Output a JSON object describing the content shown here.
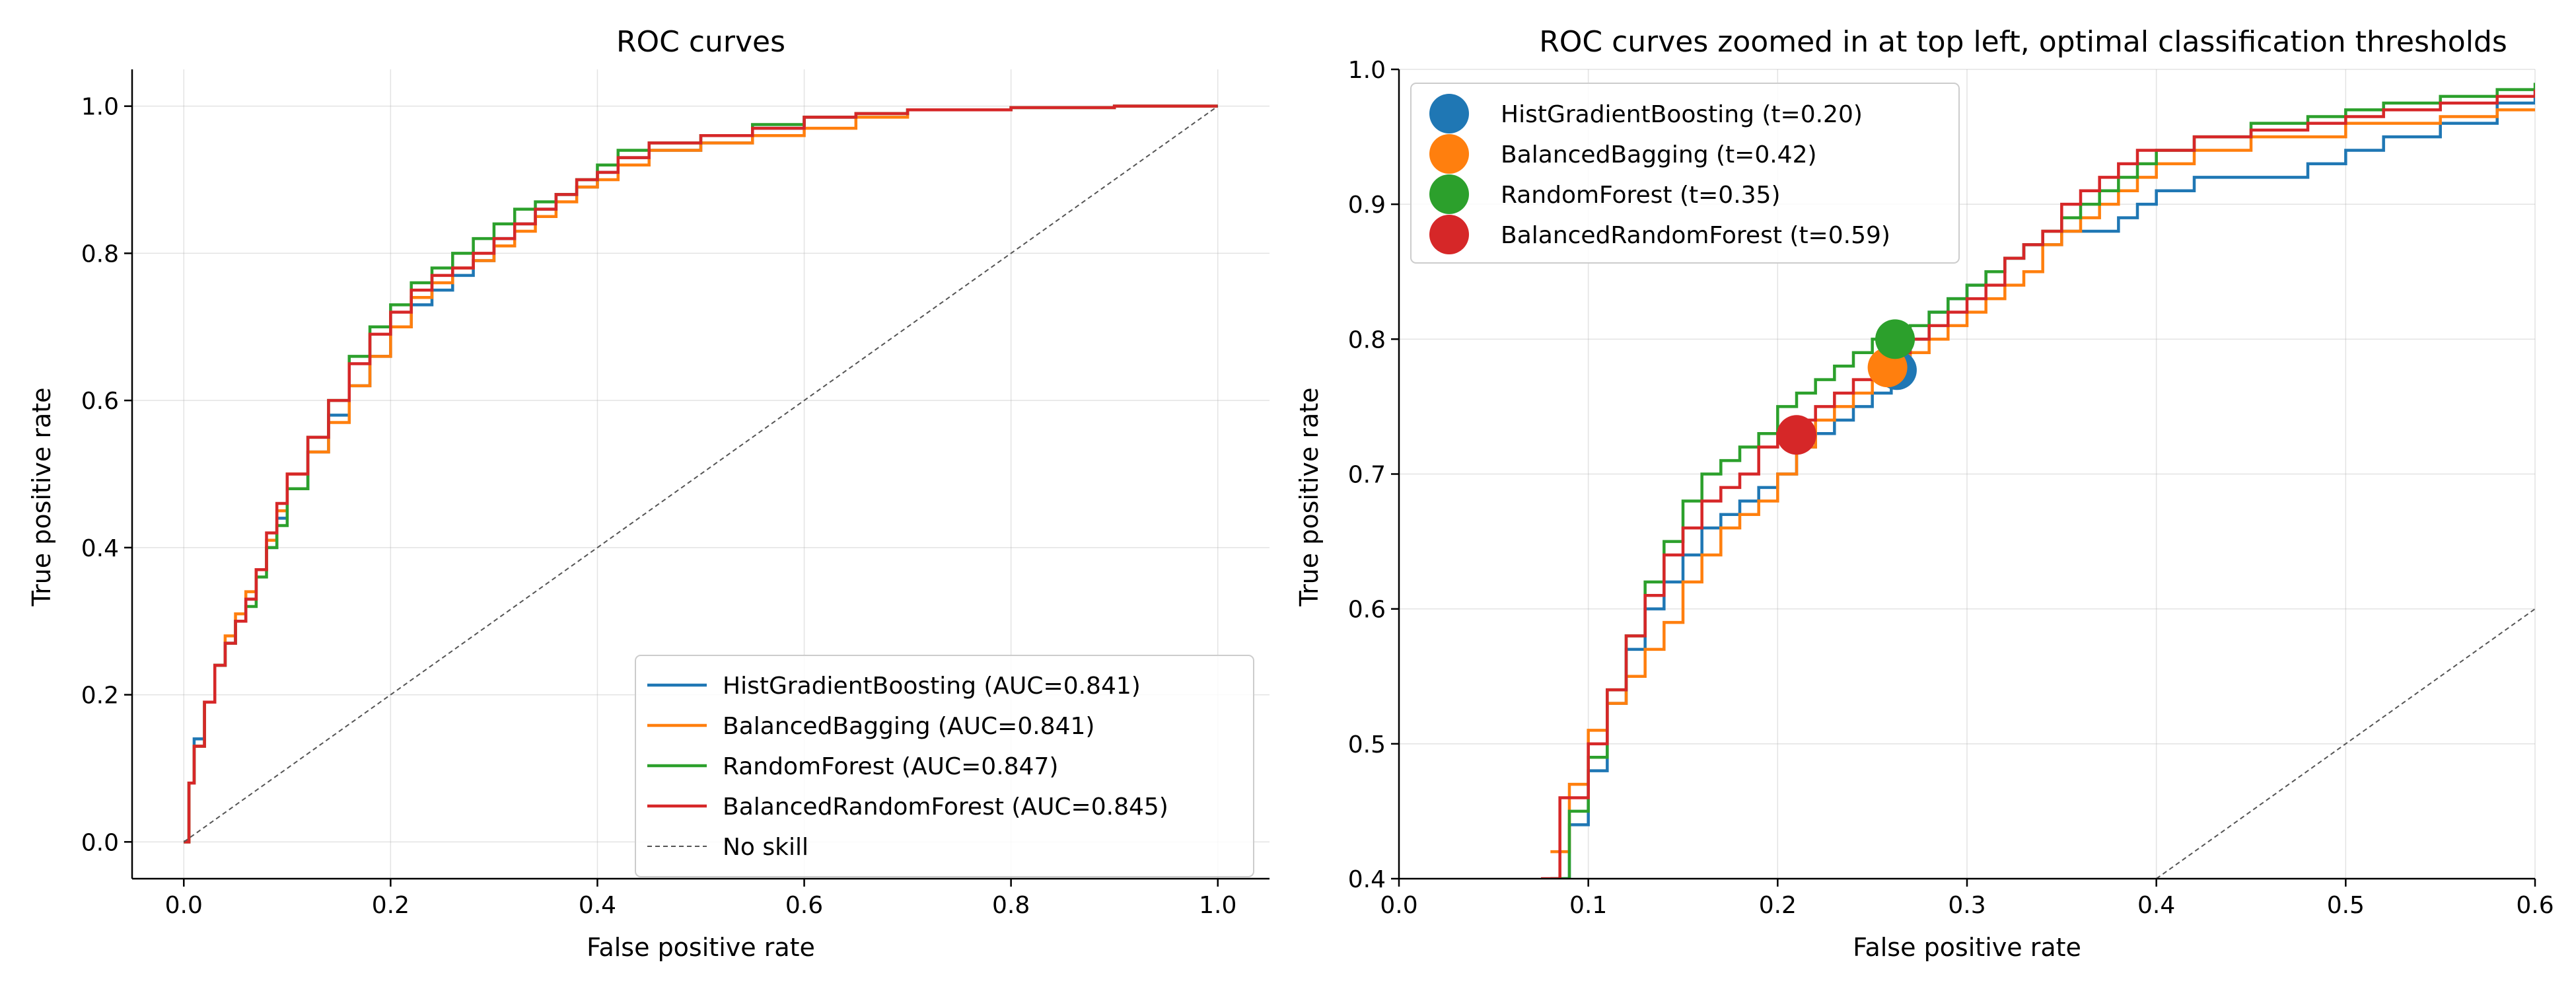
{
  "chart_data": [
    {
      "type": "line",
      "title": "ROC curves",
      "xlabel": "False positive rate",
      "ylabel": "True positive rate",
      "xlim": [
        -0.05,
        1.05
      ],
      "ylim": [
        -0.05,
        1.05
      ],
      "xticks": [
        0.0,
        0.2,
        0.4,
        0.6,
        0.8,
        1.0
      ],
      "yticks": [
        0.0,
        0.2,
        0.4,
        0.6,
        0.8,
        1.0
      ],
      "tick_labels_x": [
        "0.0",
        "0.2",
        "0.4",
        "0.6",
        "0.8",
        "1.0"
      ],
      "tick_labels_y": [
        "0.0",
        "0.2",
        "0.4",
        "0.6",
        "0.8",
        "1.0"
      ],
      "grid": true,
      "legend_position": "lower-right",
      "series": [
        {
          "name": "HistGradientBoosting (AUC=0.841)",
          "color": "#1f77b4",
          "x": [
            0,
            0.005,
            0.01,
            0.02,
            0.03,
            0.04,
            0.05,
            0.06,
            0.07,
            0.08,
            0.09,
            0.1,
            0.12,
            0.14,
            0.16,
            0.18,
            0.2,
            0.22,
            0.24,
            0.26,
            0.28,
            0.3,
            0.32,
            0.34,
            0.36,
            0.38,
            0.4,
            0.42,
            0.45,
            0.5,
            0.55,
            0.6,
            0.65,
            0.7,
            0.8,
            0.9,
            1.0
          ],
          "y": [
            0,
            0.08,
            0.14,
            0.19,
            0.24,
            0.27,
            0.3,
            0.33,
            0.37,
            0.4,
            0.44,
            0.48,
            0.53,
            0.58,
            0.62,
            0.66,
            0.7,
            0.73,
            0.75,
            0.77,
            0.79,
            0.82,
            0.84,
            0.86,
            0.88,
            0.89,
            0.91,
            0.93,
            0.94,
            0.95,
            0.97,
            0.985,
            0.99,
            0.995,
            0.998,
            1.0,
            1.0
          ]
        },
        {
          "name": "BalancedBagging (AUC=0.841)",
          "color": "#ff7f0e",
          "x": [
            0,
            0.005,
            0.01,
            0.02,
            0.03,
            0.04,
            0.05,
            0.06,
            0.07,
            0.08,
            0.09,
            0.1,
            0.12,
            0.14,
            0.16,
            0.18,
            0.2,
            0.22,
            0.24,
            0.26,
            0.28,
            0.3,
            0.32,
            0.34,
            0.36,
            0.38,
            0.4,
            0.42,
            0.45,
            0.5,
            0.55,
            0.6,
            0.65,
            0.7,
            0.8,
            0.9,
            1.0
          ],
          "y": [
            0,
            0.08,
            0.13,
            0.19,
            0.24,
            0.28,
            0.31,
            0.34,
            0.37,
            0.41,
            0.45,
            0.5,
            0.53,
            0.57,
            0.62,
            0.66,
            0.7,
            0.74,
            0.76,
            0.78,
            0.79,
            0.81,
            0.83,
            0.85,
            0.87,
            0.89,
            0.9,
            0.92,
            0.94,
            0.95,
            0.96,
            0.97,
            0.985,
            0.995,
            0.998,
            1.0,
            1.0
          ]
        },
        {
          "name": "RandomForest (AUC=0.847)",
          "color": "#2ca02c",
          "x": [
            0,
            0.005,
            0.01,
            0.02,
            0.03,
            0.04,
            0.05,
            0.06,
            0.07,
            0.08,
            0.09,
            0.1,
            0.12,
            0.14,
            0.16,
            0.18,
            0.2,
            0.22,
            0.24,
            0.26,
            0.28,
            0.3,
            0.32,
            0.34,
            0.36,
            0.38,
            0.4,
            0.42,
            0.45,
            0.5,
            0.55,
            0.6,
            0.65,
            0.7,
            0.8,
            0.9,
            1.0
          ],
          "y": [
            0,
            0.08,
            0.13,
            0.19,
            0.24,
            0.27,
            0.3,
            0.32,
            0.36,
            0.4,
            0.43,
            0.48,
            0.55,
            0.6,
            0.66,
            0.7,
            0.73,
            0.76,
            0.78,
            0.8,
            0.82,
            0.84,
            0.86,
            0.87,
            0.88,
            0.9,
            0.92,
            0.94,
            0.95,
            0.96,
            0.975,
            0.985,
            0.99,
            0.995,
            0.998,
            1.0,
            1.0
          ]
        },
        {
          "name": "BalancedRandomForest (AUC=0.845)",
          "color": "#d62728",
          "x": [
            0,
            0.005,
            0.01,
            0.02,
            0.03,
            0.04,
            0.05,
            0.06,
            0.07,
            0.08,
            0.09,
            0.1,
            0.12,
            0.14,
            0.16,
            0.18,
            0.2,
            0.22,
            0.24,
            0.26,
            0.28,
            0.3,
            0.32,
            0.34,
            0.36,
            0.38,
            0.4,
            0.42,
            0.45,
            0.5,
            0.55,
            0.6,
            0.65,
            0.7,
            0.8,
            0.9,
            1.0
          ],
          "y": [
            0,
            0.08,
            0.13,
            0.19,
            0.24,
            0.27,
            0.3,
            0.33,
            0.37,
            0.42,
            0.46,
            0.5,
            0.55,
            0.6,
            0.65,
            0.69,
            0.72,
            0.75,
            0.77,
            0.78,
            0.8,
            0.82,
            0.84,
            0.86,
            0.88,
            0.9,
            0.91,
            0.93,
            0.95,
            0.96,
            0.97,
            0.985,
            0.99,
            0.995,
            0.998,
            1.0,
            1.0
          ]
        },
        {
          "name": "No skill",
          "color": "#555555",
          "dashed": true,
          "x": [
            0,
            1
          ],
          "y": [
            0,
            1
          ]
        }
      ]
    },
    {
      "type": "line",
      "title": "ROC curves zoomed in at top left, optimal classification thresholds",
      "xlabel": "False positive rate",
      "ylabel": "True positive rate",
      "xlim": [
        0.0,
        0.6
      ],
      "ylim": [
        0.4,
        1.0
      ],
      "xticks": [
        0.0,
        0.1,
        0.2,
        0.3,
        0.4,
        0.5,
        0.6
      ],
      "yticks": [
        0.4,
        0.5,
        0.6,
        0.7,
        0.8,
        0.9,
        1.0
      ],
      "tick_labels_x": [
        "0.0",
        "0.1",
        "0.2",
        "0.3",
        "0.4",
        "0.5",
        "0.6"
      ],
      "tick_labels_y": [
        "0.4",
        "0.5",
        "0.6",
        "0.7",
        "0.8",
        "0.9",
        "1.0"
      ],
      "grid": true,
      "legend_position": "upper-left",
      "series": [
        {
          "name": "HistGradientBoosting",
          "color": "#1f77b4",
          "x": [
            0.08,
            0.09,
            0.1,
            0.11,
            0.12,
            0.13,
            0.14,
            0.15,
            0.16,
            0.17,
            0.18,
            0.19,
            0.2,
            0.21,
            0.22,
            0.23,
            0.24,
            0.25,
            0.26,
            0.27,
            0.28,
            0.29,
            0.3,
            0.31,
            0.32,
            0.33,
            0.34,
            0.35,
            0.36,
            0.37,
            0.38,
            0.39,
            0.4,
            0.42,
            0.45,
            0.48,
            0.5,
            0.52,
            0.55,
            0.58,
            0.6
          ],
          "y": [
            0.4,
            0.44,
            0.48,
            0.53,
            0.57,
            0.6,
            0.62,
            0.64,
            0.66,
            0.67,
            0.68,
            0.69,
            0.7,
            0.72,
            0.73,
            0.74,
            0.75,
            0.76,
            0.78,
            0.8,
            0.82,
            0.83,
            0.84,
            0.85,
            0.86,
            0.87,
            0.87,
            0.88,
            0.88,
            0.88,
            0.89,
            0.9,
            0.91,
            0.92,
            0.92,
            0.93,
            0.94,
            0.95,
            0.96,
            0.975,
            0.985
          ]
        },
        {
          "name": "BalancedBagging",
          "color": "#ff7f0e",
          "x": [
            0.08,
            0.09,
            0.1,
            0.11,
            0.12,
            0.13,
            0.14,
            0.15,
            0.16,
            0.17,
            0.18,
            0.19,
            0.2,
            0.21,
            0.22,
            0.23,
            0.24,
            0.25,
            0.26,
            0.27,
            0.28,
            0.29,
            0.3,
            0.31,
            0.32,
            0.33,
            0.34,
            0.35,
            0.36,
            0.37,
            0.38,
            0.39,
            0.4,
            0.42,
            0.45,
            0.48,
            0.5,
            0.52,
            0.55,
            0.58,
            0.6
          ],
          "y": [
            0.42,
            0.47,
            0.51,
            0.53,
            0.55,
            0.57,
            0.59,
            0.62,
            0.64,
            0.66,
            0.67,
            0.68,
            0.7,
            0.72,
            0.74,
            0.75,
            0.76,
            0.77,
            0.78,
            0.79,
            0.8,
            0.81,
            0.82,
            0.83,
            0.84,
            0.85,
            0.87,
            0.88,
            0.89,
            0.9,
            0.91,
            0.92,
            0.93,
            0.94,
            0.95,
            0.95,
            0.96,
            0.96,
            0.965,
            0.97,
            0.97
          ]
        },
        {
          "name": "RandomForest",
          "color": "#2ca02c",
          "x": [
            0.08,
            0.09,
            0.1,
            0.11,
            0.12,
            0.13,
            0.14,
            0.15,
            0.16,
            0.17,
            0.18,
            0.19,
            0.2,
            0.21,
            0.22,
            0.23,
            0.24,
            0.25,
            0.26,
            0.27,
            0.28,
            0.29,
            0.3,
            0.31,
            0.32,
            0.33,
            0.34,
            0.35,
            0.36,
            0.37,
            0.38,
            0.39,
            0.4,
            0.42,
            0.45,
            0.48,
            0.5,
            0.52,
            0.55,
            0.58,
            0.6
          ],
          "y": [
            0.4,
            0.45,
            0.49,
            0.54,
            0.58,
            0.62,
            0.65,
            0.68,
            0.7,
            0.71,
            0.72,
            0.73,
            0.75,
            0.76,
            0.77,
            0.78,
            0.79,
            0.8,
            0.8,
            0.81,
            0.82,
            0.83,
            0.84,
            0.85,
            0.86,
            0.87,
            0.88,
            0.89,
            0.9,
            0.91,
            0.92,
            0.93,
            0.94,
            0.95,
            0.96,
            0.965,
            0.97,
            0.975,
            0.98,
            0.985,
            0.99
          ]
        },
        {
          "name": "BalancedRandomForest",
          "color": "#d62728",
          "x": [
            0.075,
            0.085,
            0.1,
            0.11,
            0.12,
            0.13,
            0.14,
            0.15,
            0.16,
            0.17,
            0.18,
            0.19,
            0.2,
            0.21,
            0.22,
            0.23,
            0.24,
            0.25,
            0.26,
            0.27,
            0.28,
            0.29,
            0.3,
            0.31,
            0.32,
            0.33,
            0.34,
            0.35,
            0.36,
            0.37,
            0.38,
            0.39,
            0.4,
            0.42,
            0.45,
            0.48,
            0.5,
            0.52,
            0.55,
            0.58,
            0.6
          ],
          "y": [
            0.4,
            0.46,
            0.5,
            0.54,
            0.58,
            0.61,
            0.64,
            0.66,
            0.68,
            0.69,
            0.7,
            0.72,
            0.73,
            0.74,
            0.75,
            0.76,
            0.77,
            0.78,
            0.79,
            0.8,
            0.81,
            0.82,
            0.83,
            0.84,
            0.86,
            0.87,
            0.88,
            0.9,
            0.91,
            0.92,
            0.93,
            0.94,
            0.94,
            0.95,
            0.955,
            0.96,
            0.965,
            0.97,
            0.975,
            0.98,
            0.985
          ]
        },
        {
          "name": "No skill",
          "color": "#555555",
          "dashed": true,
          "x": [
            0.4,
            0.6
          ],
          "y": [
            0.4,
            0.6
          ]
        }
      ],
      "thresholds": [
        {
          "label": "HistGradientBoosting (t=0.20)",
          "color": "#1f77b4",
          "fpr": 0.263,
          "tpr": 0.777
        },
        {
          "label": "BalancedBagging (t=0.42)",
          "color": "#ff7f0e",
          "fpr": 0.258,
          "tpr": 0.779
        },
        {
          "label": "RandomForest (t=0.35)",
          "color": "#2ca02c",
          "fpr": 0.262,
          "tpr": 0.8
        },
        {
          "label": "BalancedRandomForest (t=0.59)",
          "color": "#d62728",
          "fpr": 0.21,
          "tpr": 0.729
        }
      ]
    }
  ]
}
